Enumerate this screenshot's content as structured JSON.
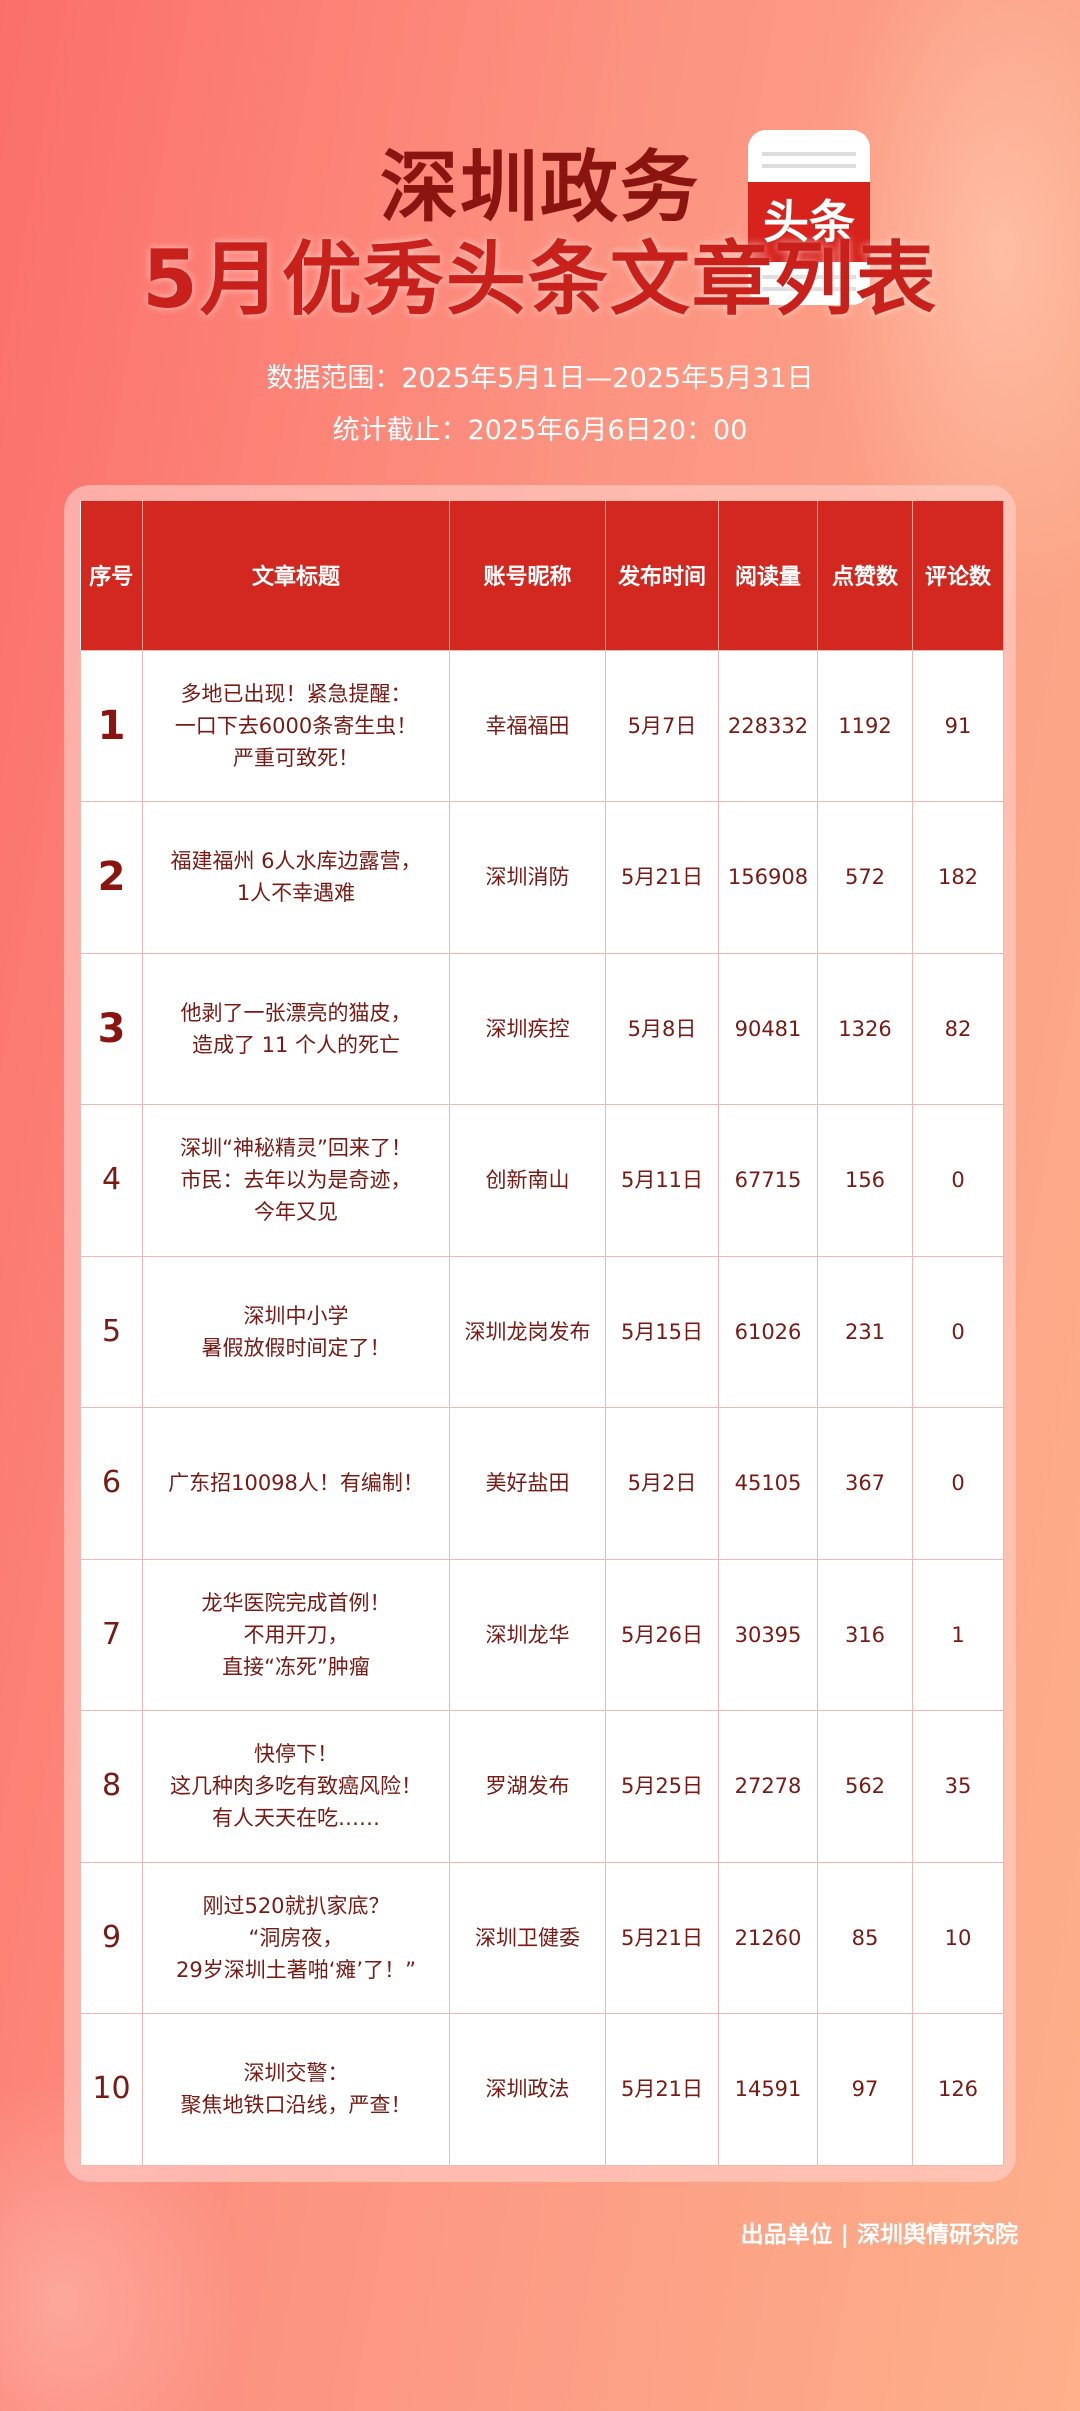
{
  "header": {
    "account": "深圳政务",
    "logo_text": "头条",
    "title": "5月优秀头条文章列表",
    "range": "数据范围：2025年5月1日—2025年5月31日",
    "cutoff": "统计截止：2025年6月6日20：00"
  },
  "table": {
    "columns": [
      "序号",
      "文章标题",
      "账号昵称",
      "发布时间",
      "阅读量",
      "点赞数",
      "评论数"
    ],
    "rows": [
      [
        "1",
        "多地已出现！紧急提醒：\n一口下去6000条寄生虫！\n严重可致死！",
        "幸福福田",
        "5月7日",
        "228332",
        "1192",
        "91"
      ],
      [
        "2",
        "福建福州 6人水库边露营，\n1人不幸遇难",
        "深圳消防",
        "5月21日",
        "156908",
        "572",
        "182"
      ],
      [
        "3",
        "他剥了一张漂亮的猫皮，\n造成了 11 个人的死亡",
        "深圳疾控",
        "5月8日",
        "90481",
        "1326",
        "82"
      ],
      [
        "4",
        "深圳“神秘精灵”回来了！\n市民：去年以为是奇迹，\n今年又见",
        "创新南山",
        "5月11日",
        "67715",
        "156",
        "0"
      ],
      [
        "5",
        "深圳中小学\n暑假放假时间定了！",
        "深圳龙岗发布",
        "5月15日",
        "61026",
        "231",
        "0"
      ],
      [
        "6",
        "广东招10098人！有编制！",
        "美好盐田",
        "5月2日",
        "45105",
        "367",
        "0"
      ],
      [
        "7",
        "龙华医院完成首例！\n不用开刀，\n直接“冻死”肿瘤",
        "深圳龙华",
        "5月26日",
        "30395",
        "316",
        "1"
      ],
      [
        "8",
        "快停下！\n这几种肉多吃有致癌风险！\n有人天天在吃……",
        "罗湖发布",
        "5月25日",
        "27278",
        "562",
        "35"
      ],
      [
        "9",
        "刚过520就扒家底？\n“洞房夜，\n29岁深圳土著啪‘瘫’了！”",
        "深圳卫健委",
        "5月21日",
        "21260",
        "85",
        "10"
      ],
      [
        "10",
        "深圳交警：\n聚焦地铁口沿线，严查！",
        "深圳政法",
        "5月21日",
        "14591",
        "97",
        "126"
      ]
    ]
  },
  "footer": "出品单位 | 深圳舆情研究院"
}
